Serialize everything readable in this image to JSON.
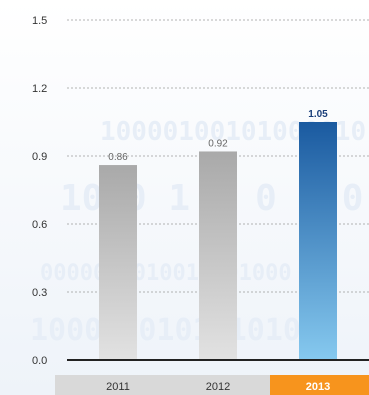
{
  "chart_data": {
    "type": "bar",
    "title": "",
    "xlabel": "",
    "ylabel": "",
    "categories": [
      "2011",
      "2012",
      "2013"
    ],
    "values": [
      0.86,
      0.92,
      1.05
    ],
    "value_labels": [
      "0.86",
      "0.92",
      "1.05"
    ],
    "highlight_index": 2,
    "ylim": [
      0.0,
      1.5
    ],
    "yticks": [
      0.0,
      0.3,
      0.6,
      0.9,
      1.2,
      1.5
    ],
    "ytick_labels": [
      "0.0",
      "0.3",
      "0.6",
      "0.9",
      "1.2",
      "1.5"
    ],
    "grid": "horizontal-dashed",
    "legend": "none",
    "colors": {
      "bar_top": "#a9a9a9",
      "bar_bottom": "#e2e2e2",
      "highlight_top": "#1a5aa0",
      "highlight_bottom": "#86c9ef",
      "highlight_category_bg": "#f7941d",
      "category_bg": "#d9d9d9",
      "grid": "#9a9a9a",
      "axis": "#222222"
    }
  }
}
